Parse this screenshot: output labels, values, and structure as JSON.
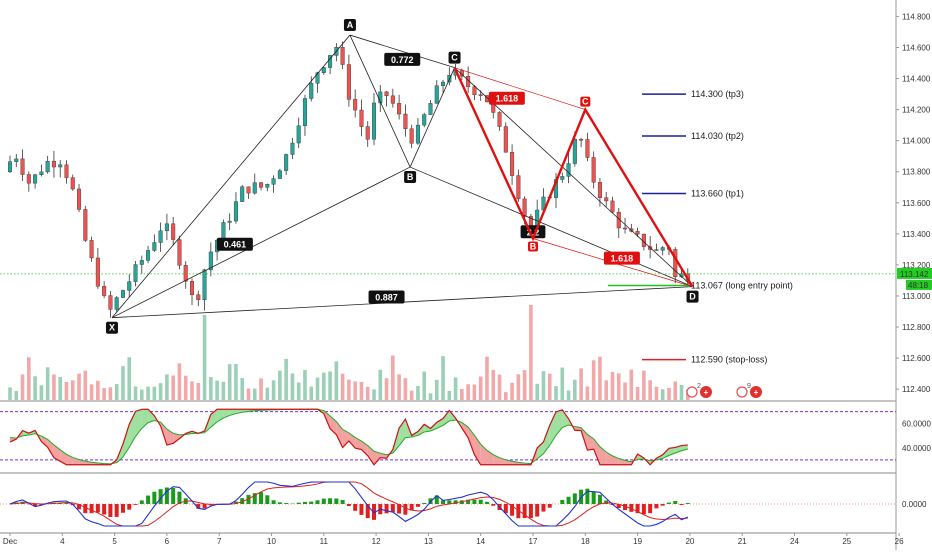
{
  "chart_data": {
    "type": "candlestick",
    "price_axis": {
      "range": [
        112.33,
        114.88
      ],
      "ticks": [
        "114.800",
        "114.600",
        "114.400",
        "114.200",
        "114.000",
        "113.800",
        "113.600",
        "113.400",
        "113.200",
        "113.000",
        "112.800",
        "112.600",
        "112.400"
      ],
      "tick_values": [
        114.8,
        114.6,
        114.4,
        114.2,
        114.0,
        113.8,
        113.6,
        113.4,
        113.2,
        113.0,
        112.8,
        112.6,
        112.4
      ],
      "current_price_label": "113.142",
      "countdown_label": "48:18",
      "current_price": 113.142
    },
    "time_axis": {
      "range": [
        0,
        17.3
      ],
      "labels": [
        "Dec",
        "4",
        "5",
        "6",
        "7",
        "10",
        "11",
        "12",
        "13",
        "14",
        "17",
        "18",
        "19",
        "20",
        "21",
        "24",
        "25",
        "26"
      ],
      "label_positions": [
        0,
        1,
        2,
        3,
        4,
        5,
        6,
        7,
        8,
        9,
        10,
        11,
        12,
        13,
        14,
        15,
        16,
        17
      ]
    },
    "price_path": [
      [
        0.0,
        113.8
      ],
      [
        0.22,
        113.92
      ],
      [
        0.5,
        113.72
      ],
      [
        0.8,
        113.86
      ],
      [
        1.1,
        113.88
      ],
      [
        1.3,
        113.7
      ],
      [
        1.6,
        113.3
      ],
      [
        1.8,
        113.1
      ],
      [
        2.0,
        112.88
      ],
      [
        2.2,
        113.0
      ],
      [
        2.5,
        113.15
      ],
      [
        2.8,
        113.32
      ],
      [
        3.05,
        113.47
      ],
      [
        3.3,
        113.3
      ],
      [
        3.5,
        113.1
      ],
      [
        3.65,
        112.93
      ],
      [
        3.9,
        113.25
      ],
      [
        4.3,
        113.5
      ],
      [
        4.6,
        113.7
      ],
      [
        5.0,
        113.7
      ],
      [
        5.4,
        113.9
      ],
      [
        5.7,
        114.2
      ],
      [
        6.0,
        114.45
      ],
      [
        6.35,
        114.62
      ],
      [
        6.6,
        114.3
      ],
      [
        6.95,
        114.0
      ],
      [
        7.1,
        114.25
      ],
      [
        7.35,
        114.3
      ],
      [
        7.6,
        114.12
      ],
      [
        7.85,
        114.0
      ],
      [
        8.1,
        114.2
      ],
      [
        8.5,
        114.45
      ],
      [
        8.9,
        114.35
      ],
      [
        9.2,
        114.3
      ],
      [
        9.6,
        113.95
      ],
      [
        10.05,
        113.42
      ],
      [
        10.4,
        113.65
      ],
      [
        10.7,
        113.8
      ],
      [
        11.0,
        114.05
      ],
      [
        11.2,
        113.8
      ],
      [
        11.5,
        113.6
      ],
      [
        11.9,
        113.4
      ],
      [
        12.2,
        113.35
      ],
      [
        12.5,
        113.28
      ],
      [
        12.7,
        113.35
      ],
      [
        12.85,
        113.1
      ],
      [
        13.0,
        113.14
      ]
    ],
    "harmonic_pattern": {
      "points": [
        {
          "label": "X",
          "t": 1.95,
          "price": 112.86
        },
        {
          "label": "A",
          "t": 6.5,
          "price": 114.68
        },
        {
          "label": "B",
          "t": 7.65,
          "price": 113.83
        },
        {
          "label": "C",
          "t": 8.5,
          "price": 114.47
        },
        {
          "label": "D",
          "t": 13.05,
          "price": 113.06
        }
      ],
      "ratios": [
        {
          "label": "0.772",
          "t": 7.5,
          "price": 114.52
        },
        {
          "label": "0.461",
          "t": 4.3,
          "price": 113.33
        },
        {
          "label": "0.887",
          "t": 7.2,
          "price": 112.99
        },
        {
          "label": "2.2",
          "t": 10.0,
          "price": 113.41
        }
      ]
    },
    "inner_pattern": {
      "points": [
        {
          "label": "B",
          "t": 10.0,
          "price": 113.37
        },
        {
          "label": "C",
          "t": 11.0,
          "price": 114.2
        }
      ],
      "ratios": [
        {
          "label": "1.618",
          "t": 9.5,
          "price": 114.27
        },
        {
          "label": "1.618",
          "t": 11.7,
          "price": 113.24
        }
      ]
    },
    "levels": [
      {
        "label": "114.300 (tp3)",
        "price": 114.3,
        "color": "#1f1f9a"
      },
      {
        "label": "114.030 (tp2)",
        "price": 114.03,
        "color": "#1f1f9a"
      },
      {
        "label": "113.660 (tp1)",
        "price": 113.66,
        "color": "#1f1f9a"
      },
      {
        "label": "113.067 (long entry point)",
        "price": 113.067,
        "color": "#22bb22"
      },
      {
        "label": "112.590 (stop-loss)",
        "price": 112.59,
        "color": "#dd2222"
      }
    ],
    "rsi": {
      "ticks": [
        "60.0000",
        "40.0000"
      ],
      "tick_values": [
        60,
        40
      ],
      "range": [
        20,
        78
      ],
      "overbought": 70,
      "oversold": 30
    },
    "macd": {
      "ticks": [
        "0.0000"
      ],
      "tick_values": [
        0
      ]
    },
    "event_badges": [
      "2",
      "9"
    ],
    "colors": {
      "up": "#26a69a",
      "down": "#ef5350",
      "volume_up": "#9ccfb8",
      "volume_down": "#f2a8a8",
      "harmonic": "#222222",
      "inner_pattern": "#e01010",
      "rsi_line": "#cc1111",
      "rsi_fill_up": "#9fdf9f",
      "rsi_fill_down": "#f3a0a0",
      "macd_line": "#2233cc",
      "signal_line": "#dd2222",
      "current_price": "#22cc22"
    }
  }
}
